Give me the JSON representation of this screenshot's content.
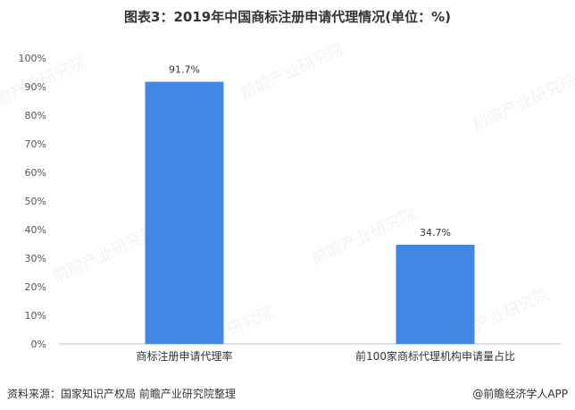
{
  "chart_data": {
    "type": "bar",
    "title": "图表3：2019年中国商标注册申请代理情况(单位：%)",
    "categories": [
      "商标注册申请代理率",
      "前100家商标代理机构申请量占比"
    ],
    "values": [
      91.7,
      34.7
    ],
    "data_labels": [
      "91.7%",
      "34.7%"
    ],
    "ylim": [
      0,
      100
    ],
    "yticks": [
      "0%",
      "10%",
      "20%",
      "30%",
      "40%",
      "50%",
      "60%",
      "70%",
      "80%",
      "90%",
      "100%"
    ],
    "xlabel": "",
    "ylabel": "",
    "grid": false,
    "bar_color": "#4387e4"
  },
  "footer": {
    "source": "资料来源：国家知识产权局 前瞻产业研究院整理",
    "brand": "@前瞻经济学人APP"
  },
  "watermark": {
    "text": "前瞻产业研究院"
  }
}
